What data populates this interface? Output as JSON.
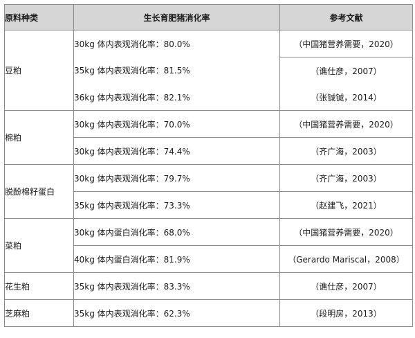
{
  "table": {
    "headers": [
      "原料种类",
      "生长育肥猪消化率",
      "参考文献"
    ],
    "groups": [
      {
        "material": "豆粕",
        "rows": [
          {
            "rate": "30kg 体内表观消化率：80.0%",
            "ref": "（中国猪营养需要，2020）"
          },
          {
            "rate": "35kg 体内表观消化率：81.5%",
            "ref": "（谯仕彦，2007）"
          },
          {
            "rate": "36kg 体内表观消化率：82.1%",
            "ref": "（张铖铖，2014）"
          }
        ]
      },
      {
        "material": "棉粕",
        "rows": [
          {
            "rate": "30kg 体内表观消化率：70.0%",
            "ref": "（中国猪营养需要，2020）"
          },
          {
            "rate": "30kg 体内表观消化率：74.4%",
            "ref": "（齐广海，2003）"
          }
        ]
      },
      {
        "material": "脱酚棉籽蛋白",
        "rows": [
          {
            "rate": "30kg 体内表观消化率：79.7%",
            "ref": "（齐广海，2003）"
          },
          {
            "rate": "35kg 体内表观消化率：73.3%",
            "ref": "（赵建飞，2021）"
          }
        ]
      },
      {
        "material": "菜粕",
        "rows": [
          {
            "rate": "30kg 体内蛋白消化率：68.0%",
            "ref": "（中国猪营养需要，2020）"
          },
          {
            "rate": "40kg 体内蛋白消化率：81.9%",
            "ref": "（Gerardo Mariscal，2008）"
          }
        ]
      },
      {
        "material": "花生粕",
        "rows": [
          {
            "rate": "35kg 体内表观消化率：83.3%",
            "ref": "（谯仕彦，2007）"
          }
        ]
      },
      {
        "material": "芝麻粕",
        "rows": [
          {
            "rate": "35kg 体内表观消化率：62.3%",
            "ref": "（段明房，2013）"
          }
        ]
      }
    ]
  }
}
